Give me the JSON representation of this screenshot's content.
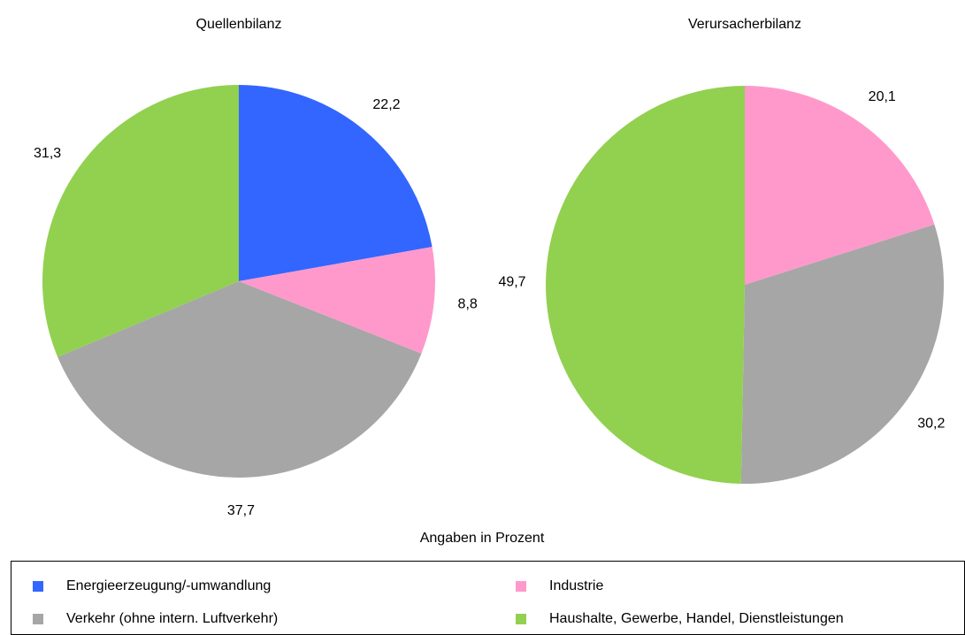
{
  "chart_data": [
    {
      "type": "pie",
      "title": "Quellenbilanz",
      "categories": [
        "Energieerzeugung/-umwandlung",
        "Industrie",
        "Verkehr (ohne intern. Luftverkehr)",
        "Haushalte, Gewerbe, Handel, Dienstleistungen"
      ],
      "values": [
        22.2,
        8.8,
        37.7,
        31.3
      ],
      "value_labels": [
        "22,2",
        "8,8",
        "37,7",
        "31,3"
      ],
      "colors": [
        "#3366ff",
        "#ff99cc",
        "#a6a6a6",
        "#92d050"
      ]
    },
    {
      "type": "pie",
      "title": "Verursacherbilanz",
      "categories": [
        "Industrie",
        "Verkehr (ohne intern. Luftverkehr)",
        "Haushalte, Gewerbe, Handel, Dienstleistungen"
      ],
      "values": [
        20.1,
        30.2,
        49.7
      ],
      "value_labels": [
        "20,1",
        "30,2",
        "49,7"
      ],
      "colors": [
        "#ff99cc",
        "#a6a6a6",
        "#92d050"
      ]
    }
  ],
  "note": "Angaben in Prozent"
}
